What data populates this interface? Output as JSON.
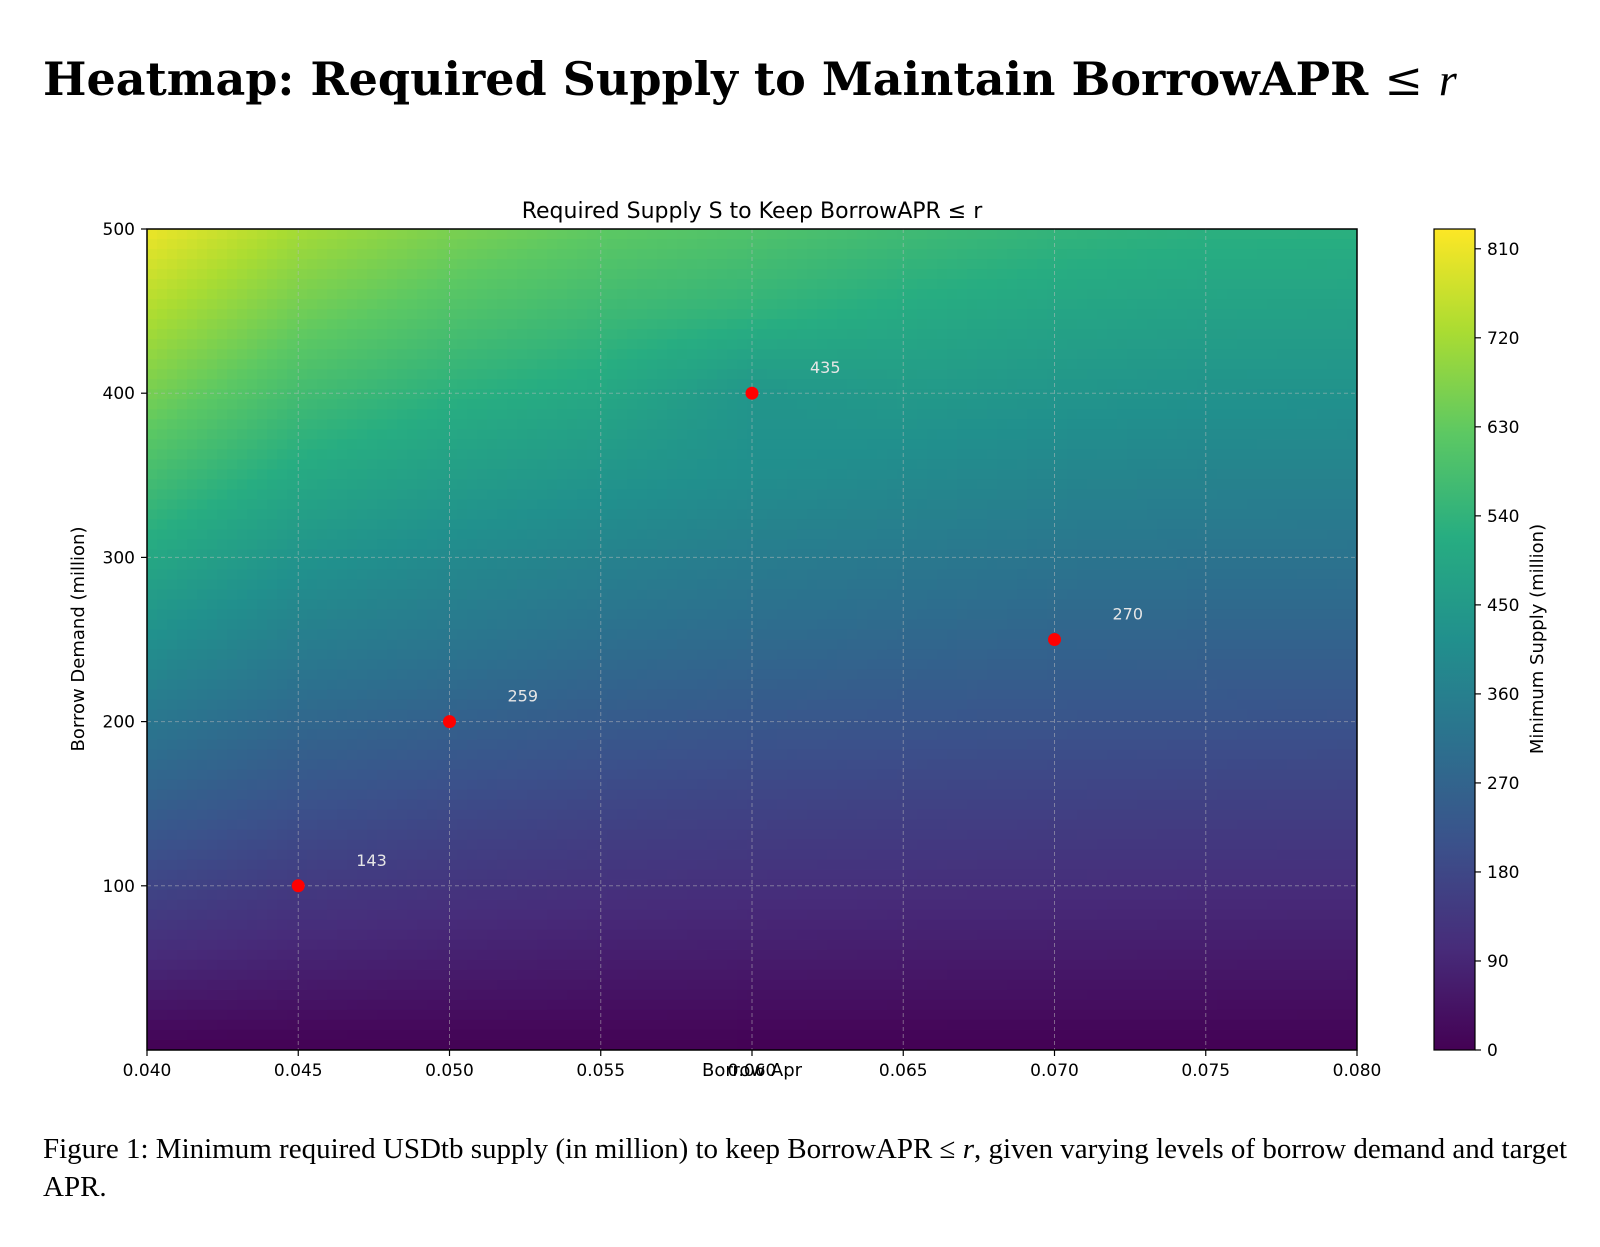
{
  "heading": {
    "text": "Heatmap: Required Supply to Maintain BorrowAPR",
    "symbol": "≤",
    "variable": "r"
  },
  "caption": {
    "prefix": "Figure 1:",
    "text_before_symbol": "Minimum required USDtb supply (in million) to keep BorrowAPR",
    "symbol": "≤",
    "variable": "r",
    "text_after_variable": ", given varying levels of borrow demand and target APR."
  },
  "chart_data": {
    "type": "heatmap",
    "title": "Required Supply S to Keep BorrowAPR ≤ r",
    "xlabel": "Borrow Apr",
    "ylabel": "Borrow Demand (million)",
    "xlim": [
      0.04,
      0.08
    ],
    "ylim": [
      0,
      500
    ],
    "x_ticks": [
      "0.040",
      "0.045",
      "0.050",
      "0.055",
      "0.060",
      "0.065",
      "0.070",
      "0.075",
      "0.080"
    ],
    "y_ticks": [
      "100",
      "200",
      "300",
      "400",
      "500"
    ],
    "grid": true,
    "colormap": "viridis",
    "colorbar": {
      "label": "Minimum Supply (million)",
      "range": [
        0,
        830
      ],
      "ticks": [
        "0",
        "90",
        "180",
        "270",
        "360",
        "450",
        "540",
        "630",
        "720",
        "810"
      ]
    },
    "value_grid": {
      "x": [
        0.04,
        0.045,
        0.05,
        0.055,
        0.06,
        0.065,
        0.07,
        0.075,
        0.08
      ],
      "y": [
        0,
        50,
        100,
        150,
        200,
        250,
        300,
        350,
        400,
        450,
        500
      ],
      "z": [
        [
          0,
          0,
          0,
          0,
          0,
          0,
          0,
          0,
          0
        ],
        [
          90,
          75,
          67,
          62,
          59,
          57,
          56,
          55,
          54
        ],
        [
          175,
          143,
          130,
          120,
          115,
          112,
          110,
          108,
          107
        ],
        [
          255,
          212,
          192,
          178,
          170,
          166,
          163,
          161,
          160
        ],
        [
          330,
          280,
          259,
          240,
          228,
          222,
          218,
          215,
          213
        ],
        [
          415,
          355,
          330,
          305,
          290,
          280,
          270,
          267,
          265
        ],
        [
          500,
          430,
          395,
          370,
          350,
          338,
          325,
          320,
          318
        ],
        [
          580,
          505,
          465,
          435,
          410,
          395,
          380,
          372,
          370
        ],
        [
          660,
          575,
          530,
          500,
          435,
          450,
          435,
          425,
          423
        ],
        [
          735,
          650,
          600,
          565,
          540,
          510,
          490,
          478,
          475
        ],
        [
          810,
          720,
          665,
          625,
          600,
          570,
          545,
          530,
          528
        ]
      ]
    },
    "points": [
      {
        "x": 0.045,
        "y": 100,
        "label": "143"
      },
      {
        "x": 0.05,
        "y": 200,
        "label": "259"
      },
      {
        "x": 0.06,
        "y": 400,
        "label": "435"
      },
      {
        "x": 0.07,
        "y": 250,
        "label": "270"
      }
    ],
    "point_color": "#ff0000",
    "label_color": "#e6e6e6"
  }
}
